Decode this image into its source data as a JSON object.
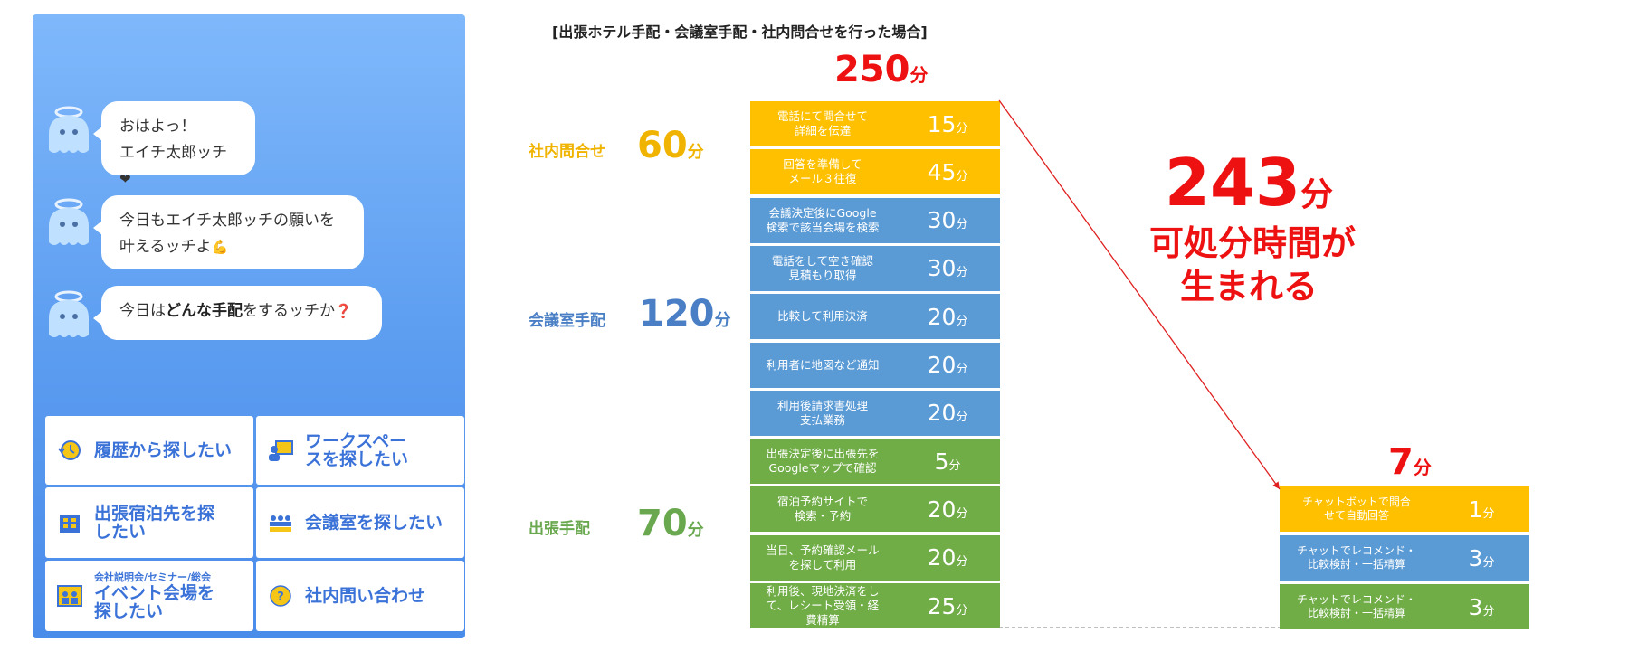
{
  "chat": {
    "messages": [
      {
        "line1": "おはよっ！",
        "line2": "エイチ太郎ッチ",
        "emoji": "❤"
      },
      {
        "line1": "今日もエイチ太郎ッチの願いを",
        "line2": "叶えるッチよ",
        "emoji": "💪"
      },
      {
        "pre": "今日は",
        "bold": "どんな手配",
        "post": "をするッチか",
        "emoji": "❓"
      }
    ],
    "menu": [
      {
        "label": "履歴から探したい",
        "icon": "history-clock-icon"
      },
      {
        "label": "ワークスペースを探したい",
        "icon": "workspace-person-icon"
      },
      {
        "label": "出張宿泊先を探したい",
        "icon": "hotel-building-icon"
      },
      {
        "label": "会議室を探したい",
        "icon": "meeting-people-icon"
      },
      {
        "small": "会社説明会/セミナー/総会",
        "label": "イベント会場を探したい",
        "icon": "event-venue-icon"
      },
      {
        "label": "社内問い合わせ",
        "icon": "question-coin-icon"
      }
    ]
  },
  "diagram": {
    "heading": "[出張ホテル手配・会議室手配・社内問合せを行った場合]",
    "unit": "分",
    "before_total": "250",
    "after_total": "7",
    "saved": "243",
    "message_line1": "可処分時間が",
    "message_line2": "生まれる",
    "colors": {
      "orange": "#ffc000",
      "blue": "#5b9bd5",
      "green": "#70ad47",
      "accent": "#ee1111"
    },
    "groups": [
      {
        "label": "社内問合せ",
        "value": "60",
        "color": "#f0b400"
      },
      {
        "label": "会議室手配",
        "value": "120",
        "color": "#4a7fc6"
      },
      {
        "label": "出張手配",
        "value": "70",
        "color": "#6aa84f"
      }
    ],
    "before_steps": [
      {
        "text": "電話にて問合せて\n詳細を伝達",
        "value": "15",
        "color": "orange"
      },
      {
        "text": "回答を準備して\nメール３往復",
        "value": "45",
        "color": "orange"
      },
      {
        "text": "会議決定後にGoogle\n検索で該当会場を検索",
        "value": "30",
        "color": "blue"
      },
      {
        "text": "電話をして空き確認\n見積もり取得",
        "value": "30",
        "color": "blue"
      },
      {
        "text": "比較して利用決済",
        "value": "20",
        "color": "blue"
      },
      {
        "text": "利用者に地図など通知",
        "value": "20",
        "color": "blue"
      },
      {
        "text": "利用後請求書処理\n支払業務",
        "value": "20",
        "color": "blue"
      },
      {
        "text": "出張決定後に出張先を\nGoogleマップで確認",
        "value": "5",
        "color": "green"
      },
      {
        "text": "宿泊予約サイトで\n検索・予約",
        "value": "20",
        "color": "green"
      },
      {
        "text": "当日、予約確認メール\nを探して利用",
        "value": "20",
        "color": "green"
      },
      {
        "text": "利用後、現地決済をし\nて、レシート受領・経\n費精算",
        "value": "25",
        "color": "green"
      }
    ],
    "after_steps": [
      {
        "text": "チャットボットで問合\nせて自動回答",
        "value": "1",
        "color": "orange"
      },
      {
        "text": "チャットでレコメンド・\n比較検討・一括精算",
        "value": "3",
        "color": "blue"
      },
      {
        "text": "チャットでレコメンド・\n比較検討・一括精算",
        "value": "3",
        "color": "green"
      }
    ]
  }
}
